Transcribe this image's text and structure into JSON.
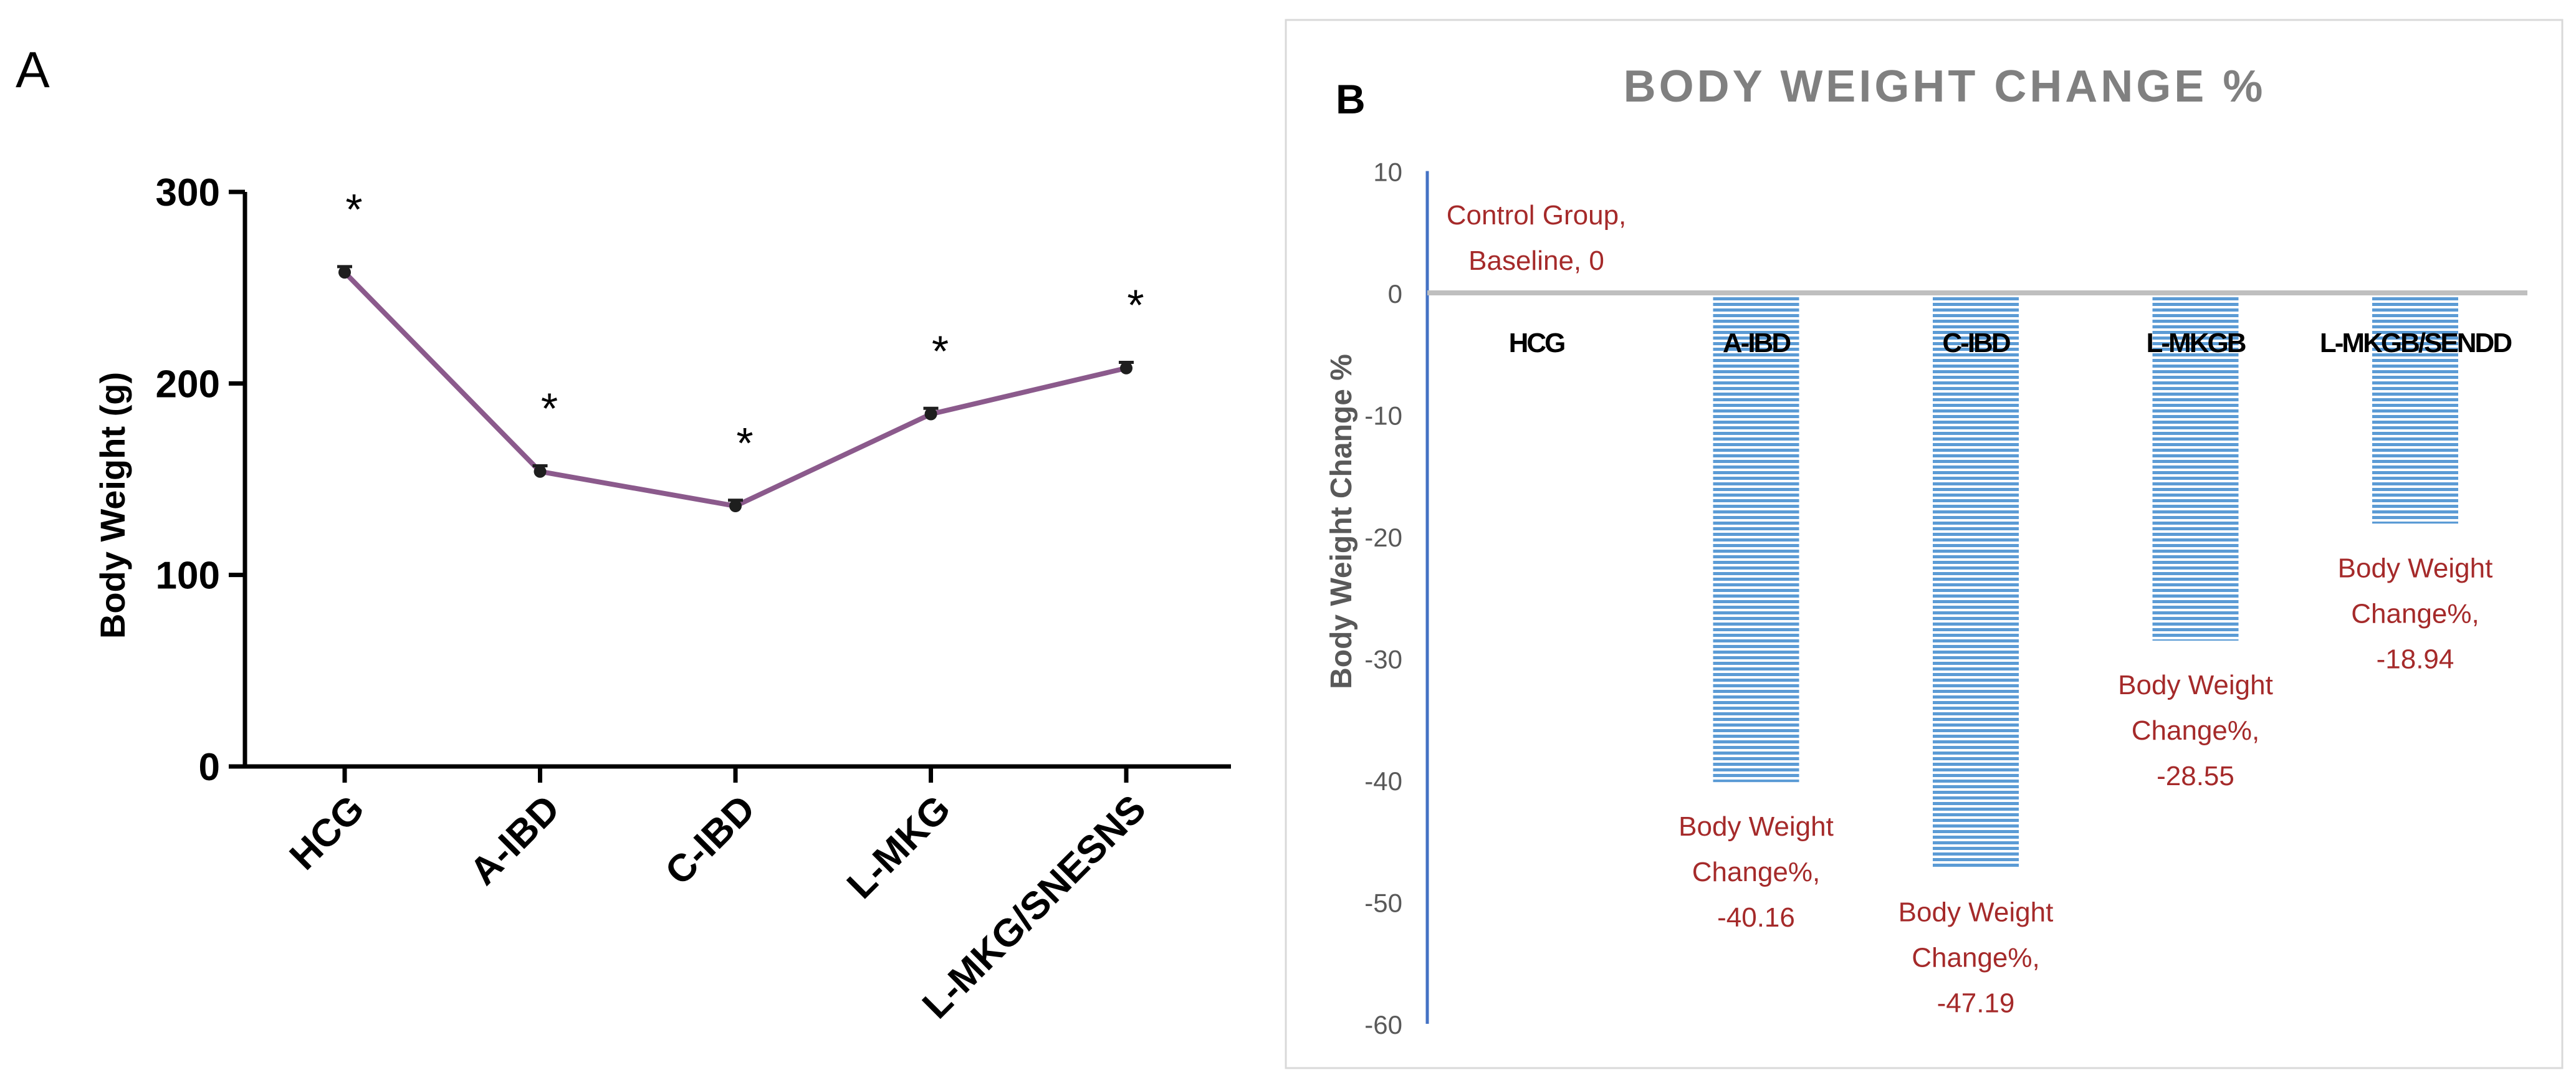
{
  "panel_a": {
    "label": "A",
    "significance_marker": "*",
    "chart_data": {
      "type": "line",
      "title": "",
      "xlabel": "",
      "ylabel": "Body Weight (g)",
      "ylim": [
        0,
        300
      ],
      "yticks": [
        "0",
        "100",
        "200",
        "300"
      ],
      "categories": [
        "HCG",
        "A-IBD",
        "C-IBD",
        "L-MKG",
        "L-MKG/SNESNS"
      ],
      "series": [
        {
          "name": "Body Weight (g)",
          "values": [
            258,
            154,
            136,
            184,
            208
          ],
          "errors": [
            3,
            3,
            3,
            3,
            3
          ]
        }
      ],
      "significant": [
        true,
        true,
        true,
        true,
        true
      ],
      "colors": {
        "line": "#8b5a8c",
        "marker": "#1e1e1e",
        "axis": "#000000"
      }
    }
  },
  "panel_b": {
    "label": "B",
    "chart_data": {
      "type": "bar",
      "title": "BODY WEIGHT CHANGE %",
      "xlabel": "",
      "ylabel": "Body Weight Change %",
      "ylim": [
        -60,
        10
      ],
      "yticks": [
        "10",
        "0",
        "-10",
        "-20",
        "-30",
        "-40",
        "-50",
        "-60"
      ],
      "categories": [
        "HCG",
        "A-IBD",
        "C-IBD",
        "L-MKGB",
        "L-MKGB/SENDD"
      ],
      "values": [
        0,
        -40.16,
        -47.19,
        -28.55,
        -18.94
      ],
      "data_labels": [
        [
          "Control Group,",
          "Baseline, 0"
        ],
        [
          "Body Weight",
          "Change%,",
          "-40.16"
        ],
        [
          "Body Weight",
          "Change%,",
          "-47.19"
        ],
        [
          "Body Weight",
          "Change%,",
          "-28.55"
        ],
        [
          "Body Weight",
          "Change%,",
          "-18.94"
        ]
      ],
      "colors": {
        "bar": "#5b9bd5",
        "label": "#a52a2a",
        "title": "#808080",
        "zero_line": "#bfbfbf",
        "axis": "#4472c4"
      }
    }
  }
}
